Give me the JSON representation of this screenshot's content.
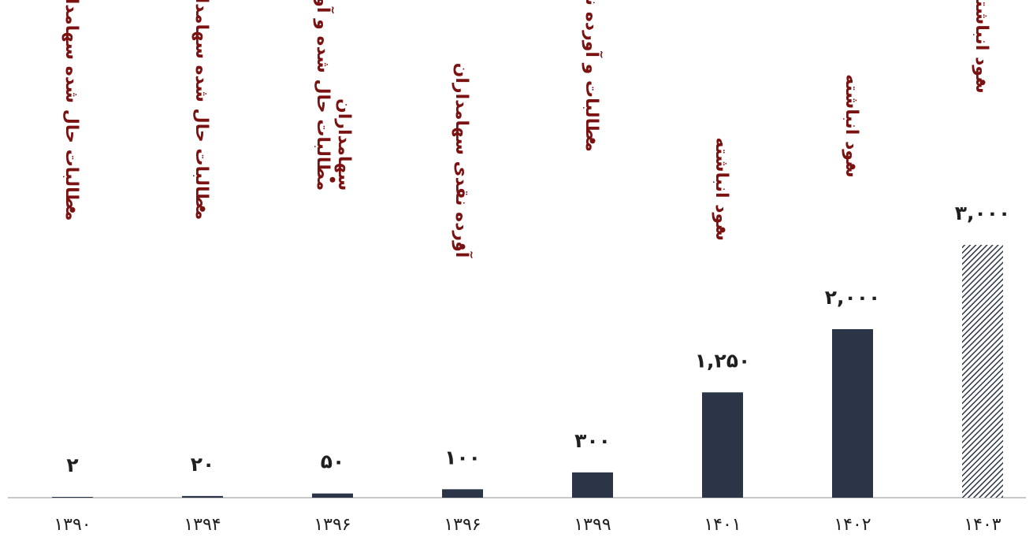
{
  "chart_data": {
    "type": "bar",
    "categories": [
      "۱۳۹۰",
      "۱۳۹۴",
      "۱۳۹۶",
      "۱۳۹۶",
      "۱۳۹۹",
      "۱۴۰۱",
      "۱۴۰۲",
      "۱۴۰۳"
    ],
    "values": [
      2,
      20,
      50,
      100,
      300,
      1250,
      2000,
      3000
    ],
    "value_labels": [
      "۲",
      "۲۰",
      "۵۰",
      "۱۰۰",
      "۳۰۰",
      "۱,۲۵۰",
      "۲,۰۰۰",
      "۳,۰۰۰"
    ],
    "annotations": [
      [
        "مطالبات حال شده سهامداران"
      ],
      [
        "مطالبات حال شده سهامداران"
      ],
      [
        "مطالبات حال شده و آورده نقدی",
        "سهامداران"
      ],
      [
        "آورده نقدی سهامداران"
      ],
      [
        "مطالبات و آورده نقدی سهامداران"
      ],
      [
        "سود انباشته"
      ],
      [
        "سود انباشته"
      ],
      [
        "سود انباشته"
      ]
    ],
    "highlighted_index": 7,
    "highlight_style": "hatched",
    "ylim": [
      0,
      3000
    ],
    "title": "",
    "xlabel": "",
    "ylabel": "",
    "grid": false,
    "legend": "none",
    "colors": {
      "bar": "#2b3547",
      "hatch": "#2b3547",
      "annotation": "#7a1212",
      "axis": "#c8c8c8",
      "text": "#1f1f1f"
    }
  }
}
